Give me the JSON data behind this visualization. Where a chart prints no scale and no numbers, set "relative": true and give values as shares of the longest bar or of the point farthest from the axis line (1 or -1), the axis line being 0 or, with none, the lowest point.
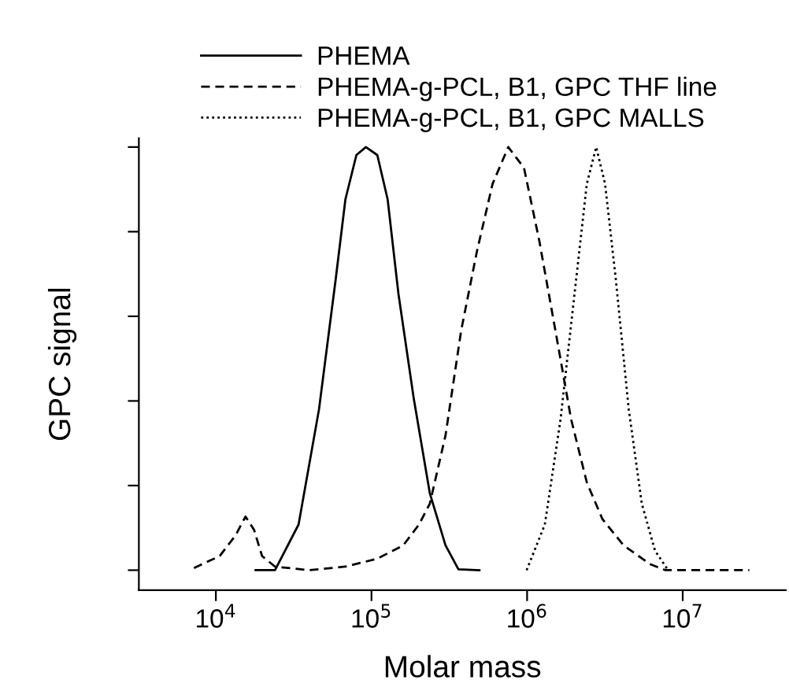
{
  "chart_data": {
    "type": "line",
    "xlabel": "Molar mass",
    "ylabel": "GPC signal",
    "relative": true,
    "log": "x",
    "xlim": [
      3200,
      46000000
    ],
    "xticks": [
      {
        "value": 10000,
        "label": "10$^{4}$"
      },
      {
        "value": 100000,
        "label": "10$^{5}$"
      },
      {
        "value": 1000000,
        "label": "10$^{6}$"
      },
      {
        "value": 10000000,
        "label": "10$^{7}$"
      }
    ],
    "legend": "top",
    "grid": false,
    "marker": "none",
    "series": [
      {
        "name": "PHEMA",
        "color": "#000000",
        "line_style": "solid",
        "x": [
          18000,
          24000,
          34000,
          46000,
          59000,
          68000,
          80000,
          92000,
          109000,
          127000,
          149000,
          187000,
          237000,
          299000,
          362000,
          494000
        ],
        "values": [
          0.045,
          0.045,
          0.148,
          0.408,
          0.704,
          0.882,
          0.982,
          1.0,
          0.982,
          0.882,
          0.669,
          0.432,
          0.219,
          0.101,
          0.047,
          0.045
        ]
      },
      {
        "name": "PHEMA-g-PCL, B1, GPC THF line",
        "color": "#000000",
        "line_style": "dashed",
        "x": [
          7230,
          10600,
          13400,
          15500,
          17600,
          19800,
          24000,
          39700,
          68000,
          109000,
          160000,
          202000,
          237000,
          299000,
          377000,
          475000,
          600000,
          757000,
          955000,
          1200000,
          1520000,
          1920000,
          2420000,
          3050000,
          4170000,
          6140000,
          7740000,
          26800000
        ],
        "values": [
          0.05,
          0.077,
          0.124,
          0.166,
          0.136,
          0.077,
          0.053,
          0.045,
          0.053,
          0.071,
          0.101,
          0.148,
          0.195,
          0.349,
          0.586,
          0.763,
          0.917,
          1.0,
          0.953,
          0.787,
          0.586,
          0.385,
          0.243,
          0.16,
          0.101,
          0.059,
          0.045,
          0.045
        ]
      },
      {
        "name": "PHEMA-g-PCL, B1, GPC MALLS",
        "color": "#000000",
        "line_style": "dotted",
        "x": [
          993000,
          1300000,
          1640000,
          2070000,
          2420000,
          2780000,
          3170000,
          3710000,
          4500000,
          5460000,
          6640000,
          8050000
        ],
        "values": [
          0.045,
          0.148,
          0.385,
          0.704,
          0.917,
          1.0,
          0.917,
          0.704,
          0.408,
          0.195,
          0.089,
          0.045
        ]
      }
    ]
  }
}
